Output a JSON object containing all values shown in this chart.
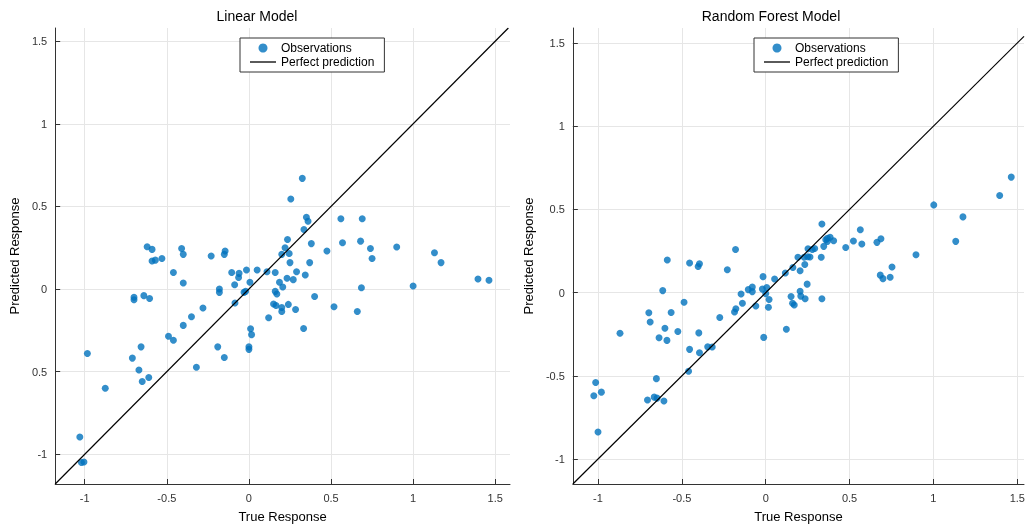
{
  "chart_data": [
    {
      "type": "scatter",
      "title": "Linear Model",
      "xlabel": "True Response",
      "ylabel": "Predicted Response",
      "xlim": [
        -1.18,
        1.59
      ],
      "ylim": [
        -1.18,
        1.58
      ],
      "xticks": [
        -1,
        -0.5,
        0,
        0.5,
        1,
        1.5
      ],
      "yticks": [
        -1,
        {
          "value": -0.5,
          "label": "0.5"
        },
        0,
        0.5,
        1,
        1.5
      ],
      "grid": true,
      "legend": "top",
      "marker": "circle",
      "series": [
        {
          "name": "Observations",
          "type": "scatter",
          "color": "#0072bd",
          "x": [
            -0.62,
            -0.59,
            -0.59,
            -0.57,
            -0.53,
            -0.46,
            -0.41,
            -0.4,
            -0.23,
            -0.15,
            -0.145,
            -0.105,
            -0.06,
            -0.015,
            0.05,
            0.11,
            0.16,
            0.2,
            0.22,
            0.235,
            0.245,
            0.25,
            0.255,
            0.325,
            0.335,
            0.35,
            0.36,
            0.37,
            0.38,
            0.475,
            0.56,
            0.57,
            0.68,
            0.69,
            0.74,
            0.75,
            0.9,
            1.13,
            1.17,
            -0.4,
            -0.063,
            0.29,
            0.343,
            0.232,
            0.27,
            0.186,
            0.206,
            0.006,
            -0.087,
            -0.02,
            -0.03,
            -0.18,
            -0.18,
            -0.7,
            -0.7,
            -0.64,
            -0.605,
            -0.085,
            -0.28,
            -0.35,
            -0.4,
            -0.49,
            -0.46,
            -0.657,
            -0.19,
            -0.15,
            0.0,
            0.0,
            0.01,
            0.016,
            -0.32,
            -0.71,
            -0.67,
            -0.65,
            -0.61,
            -0.984,
            -0.875,
            -1.03,
            -1.02,
            -1.005,
            0.16,
            0.17,
            0.15,
            0.165,
            0.24,
            0.2,
            0.2,
            0.12,
            0.284,
            0.333,
            0.4,
            0.518,
            0.66,
            0.685,
            1.0,
            1.395,
            1.462
          ],
          "values": [
            0.256,
            0.24,
            0.17,
            0.175,
            0.185,
            0.1,
            0.245,
            0.21,
            0.2,
            0.21,
            0.23,
            0.1,
            0.095,
            0.115,
            0.115,
            0.105,
            0.1,
            0.21,
            0.25,
            0.3,
            0.215,
            0.16,
            0.545,
            0.67,
            0.36,
            0.435,
            0.41,
            0.16,
            0.275,
            0.23,
            0.425,
            0.28,
            0.29,
            0.425,
            0.245,
            0.185,
            0.255,
            0.22,
            0.16,
            0.037,
            0.07,
            0.105,
            0.085,
            0.065,
            0.057,
            0.041,
            0.012,
            0.041,
            0.026,
            -0.014,
            -0.02,
            0.0,
            -0.02,
            -0.05,
            -0.065,
            -0.04,
            -0.057,
            -0.085,
            -0.115,
            -0.168,
            -0.22,
            -0.286,
            -0.31,
            -0.35,
            -0.35,
            -0.414,
            -0.35,
            -0.365,
            -0.24,
            -0.276,
            -0.473,
            -0.418,
            -0.49,
            -0.56,
            -0.535,
            -0.39,
            -0.6,
            -0.895,
            -1.05,
            -1.047,
            -0.014,
            -0.03,
            -0.09,
            -0.1,
            -0.093,
            -0.112,
            -0.136,
            -0.174,
            -0.124,
            -0.239,
            -0.045,
            -0.107,
            -0.136,
            0.008,
            0.018,
            0.061,
            0.053
          ]
        },
        {
          "name": "Perfect prediction",
          "type": "line",
          "color": "#000000",
          "marker": "none",
          "x": [
            -1.18,
            1.58
          ],
          "values": [
            -1.18,
            1.58
          ]
        }
      ]
    },
    {
      "type": "scatter",
      "title": "Random Forest Model",
      "xlabel": "True Response",
      "ylabel": "Predicted Response",
      "xlim": [
        -1.15,
        1.54
      ],
      "ylim": [
        -1.15,
        1.59
      ],
      "xticks": [
        -1,
        -0.5,
        0,
        0.5,
        1,
        1.5
      ],
      "yticks": [
        -1,
        -0.5,
        0,
        0.5,
        1,
        1.5
      ],
      "grid": true,
      "legend": "top",
      "marker": "circle",
      "series": [
        {
          "name": "Observations",
          "type": "scatter",
          "color": "#0072bd",
          "x": [
            -0.587,
            -0.454,
            -0.403,
            -0.395,
            -0.229,
            -0.18,
            -0.016,
            0.053,
            0.117,
            0.162,
            0.205,
            0.192,
            0.233,
            0.229,
            0.25,
            0.264,
            0.252,
            0.278,
            0.292,
            0.331,
            0.335,
            0.346,
            0.358,
            0.368,
            0.384,
            0.368,
            0.405,
            0.477,
            0.523,
            0.564,
            0.573,
            0.663,
            0.687,
            0.896,
            1.002,
            1.133,
            1.176,
            1.395,
            1.464,
            0.683,
            0.699,
            0.742,
            0.753,
            0.247,
            -0.614,
            -0.147,
            -0.104,
            -0.08,
            -0.08,
            -0.02,
            0.006,
            0.0,
            0.02,
            0.016,
            -0.059,
            -0.139,
            -0.178,
            -0.186,
            -0.274,
            -0.487,
            -0.564,
            -0.697,
            -0.689,
            -0.601,
            -0.524,
            -0.636,
            -0.589,
            -0.399,
            -0.869,
            -0.454,
            -0.395,
            -0.346,
            -0.319,
            -0.46,
            -0.652,
            -0.705,
            -0.665,
            -0.648,
            -0.607,
            -1.014,
            -1.025,
            -0.98,
            -1.0,
            -0.012,
            0.123,
            0.151,
            0.16,
            0.17,
            0.205,
            0.209,
            0.235,
            0.335
          ],
          "values": [
            0.196,
            0.178,
            0.157,
            0.173,
            0.137,
            0.259,
            0.096,
            0.082,
            0.118,
            0.151,
            0.131,
            0.212,
            0.169,
            0.212,
            0.216,
            0.214,
            0.263,
            0.259,
            0.265,
            0.212,
            0.412,
            0.278,
            0.318,
            0.327,
            0.333,
            0.308,
            0.312,
            0.271,
            0.31,
            0.378,
            0.292,
            0.302,
            0.324,
            0.227,
            0.527,
            0.308,
            0.455,
            0.584,
            0.694,
            0.105,
            0.084,
            0.092,
            0.154,
            0.051,
            0.012,
            -0.008,
            0.018,
            0.033,
            0.006,
            0.021,
            0.031,
            -0.006,
            -0.041,
            -0.088,
            -0.08,
            -0.064,
            -0.097,
            -0.117,
            -0.15,
            -0.058,
            -0.119,
            -0.121,
            -0.177,
            -0.214,
            -0.234,
            -0.271,
            -0.287,
            -0.242,
            -0.244,
            -0.341,
            -0.361,
            -0.326,
            -0.327,
            -0.472,
            -0.517,
            -0.645,
            -0.628,
            -0.634,
            -0.651,
            -0.54,
            -0.62,
            -0.598,
            -0.838,
            -0.269,
            -0.22,
            -0.023,
            -0.064,
            -0.074,
            0.008,
            -0.021,
            -0.037,
            -0.037
          ]
        },
        {
          "name": "Perfect prediction",
          "type": "line",
          "color": "#000000",
          "marker": "none",
          "x": [
            -1.15,
            1.54
          ],
          "values": [
            -1.15,
            1.54
          ]
        }
      ]
    }
  ]
}
